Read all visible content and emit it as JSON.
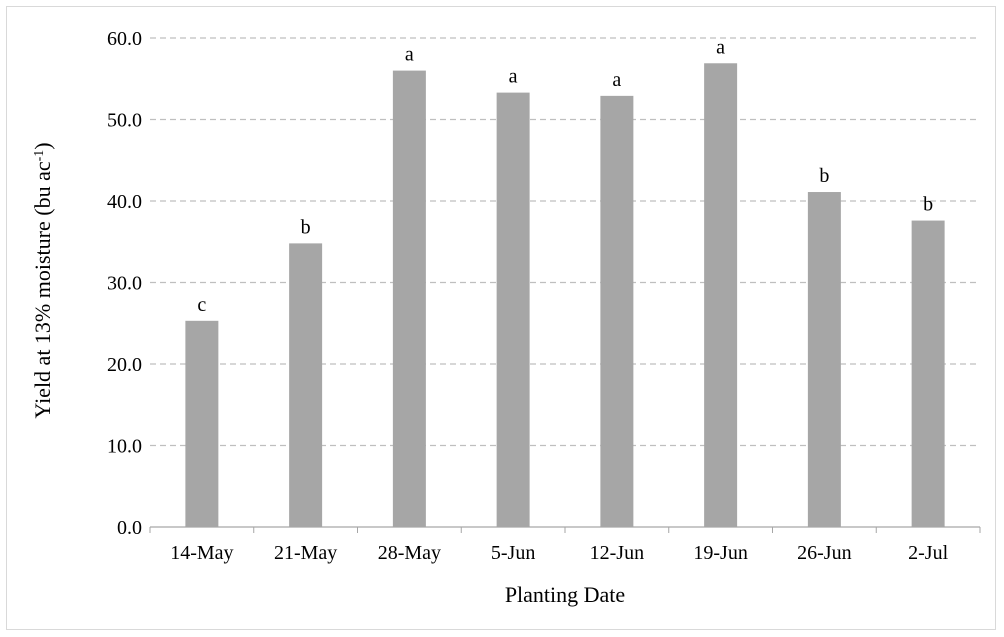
{
  "chart_data": {
    "type": "bar",
    "title": "",
    "xlabel": "Planting Date",
    "ylabel_main": "Yield at 13% moisture (bu ac",
    "ylabel_sup": "-1",
    "ylabel_end": ")",
    "categories": [
      "14-May",
      "21-May",
      "28-May",
      "5-Jun",
      "12-Jun",
      "19-Jun",
      "26-Jun",
      "2-Jul"
    ],
    "values": [
      25.3,
      34.8,
      56.0,
      53.3,
      52.9,
      56.9,
      41.1,
      37.6
    ],
    "labels": [
      "c",
      "b",
      "a",
      "a",
      "a",
      "a",
      "b",
      "b"
    ],
    "ylim": [
      0,
      60
    ],
    "yticks": [
      "0.0",
      "10.0",
      "20.0",
      "30.0",
      "40.0",
      "50.0",
      "60.0"
    ],
    "grid": true,
    "bar_color": "#a6a6a6",
    "grid_color": "#bfbfbf"
  }
}
